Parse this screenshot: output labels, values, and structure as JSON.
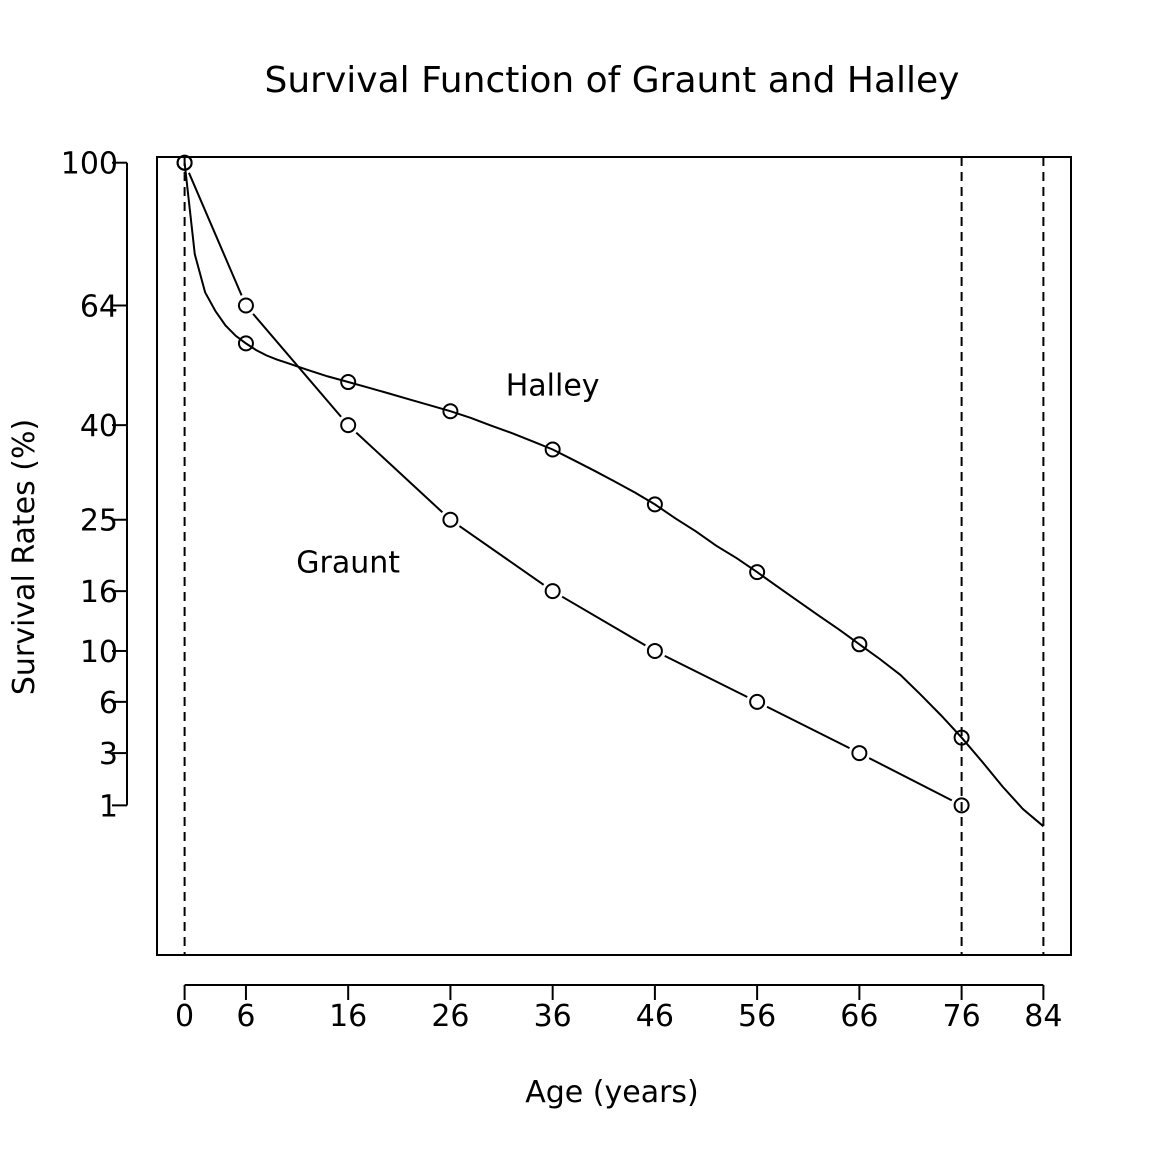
{
  "chart_data": {
    "type": "line",
    "title": "Survival Function of Graunt and Halley",
    "xlabel": "Age (years)",
    "ylabel": "Survival Rates (%)",
    "xlim": [
      -2.7,
      86.7
    ],
    "ylim": [
      -1.2,
      101.6
    ],
    "x_scale": "linear",
    "y_scale": "sqrt",
    "x_ticks": [
      0,
      6,
      16,
      26,
      36,
      46,
      56,
      66,
      76,
      84
    ],
    "y_ticks": [
      1,
      3,
      6,
      10,
      16,
      25,
      40,
      64,
      100
    ],
    "vlines": [
      0,
      76,
      84
    ],
    "grid": false,
    "legend": "none",
    "series": [
      {
        "name": "Graunt",
        "x": [
          0,
          6,
          16,
          26,
          36,
          46,
          56,
          66,
          76
        ],
        "y": [
          100,
          64,
          40,
          25,
          16,
          10,
          6,
          3,
          1
        ],
        "line_style": "solid-with-gaps",
        "marker": "circle",
        "marker_x": [
          0,
          6,
          16,
          26,
          36,
          46,
          56,
          66,
          76
        ],
        "marker_y": [
          100,
          64,
          40,
          25,
          16,
          10,
          6,
          3,
          1
        ]
      },
      {
        "name": "Halley",
        "x": [
          0,
          1,
          2,
          3,
          4,
          5,
          6,
          7,
          8,
          9,
          10,
          12,
          14,
          16,
          18,
          20,
          22,
          24,
          26,
          28,
          30,
          32,
          34,
          36,
          38,
          40,
          42,
          44,
          46,
          48,
          50,
          52,
          54,
          56,
          58,
          60,
          62,
          64,
          66,
          68,
          70,
          72,
          74,
          76,
          78,
          80,
          82,
          84
        ],
        "y": [
          100,
          76,
          67,
          62.8,
          59.6,
          57.4,
          55.8,
          54.4,
          53.3,
          52.5,
          51.8,
          50.4,
          49.1,
          48,
          46.9,
          45.8,
          44.7,
          43.6,
          42.5,
          41.3,
          39.9,
          38.6,
          37.2,
          35.8,
          34.1,
          32.4,
          30.7,
          29,
          27.2,
          25.2,
          23.4,
          21.5,
          19.9,
          18.2,
          16.5,
          14.9,
          13.4,
          12,
          10.6,
          9.3,
          8,
          6.5,
          5.1,
          3.8,
          2.6,
          1.6,
          0.9,
          0.5
        ],
        "line_style": "solid",
        "marker": "circle",
        "marker_x": [
          0,
          6,
          16,
          26,
          36,
          46,
          56,
          66,
          76
        ],
        "marker_y": [
          100,
          55.8,
          48,
          42.5,
          35.8,
          27.2,
          18.2,
          10.6,
          3.8
        ]
      }
    ],
    "annotations": [
      {
        "text": "Halley",
        "x": 36,
        "y": 47.5
      },
      {
        "text": "Graunt",
        "x": 16,
        "y": 19.5
      }
    ]
  }
}
